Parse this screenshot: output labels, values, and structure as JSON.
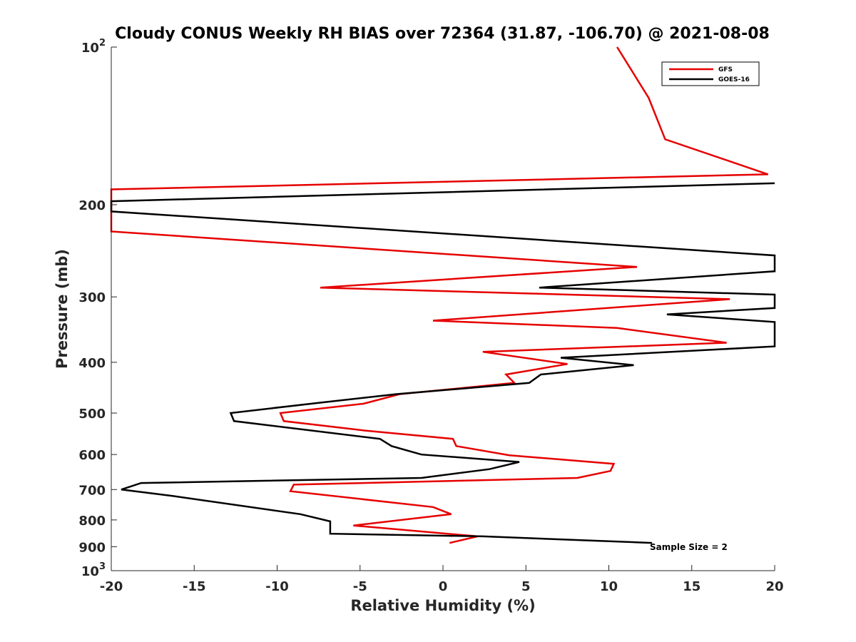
{
  "chart_data": {
    "type": "line",
    "title": "Cloudy CONUS Weekly RH BIAS over 72364 (31.87, -106.70) @ 2021-08-08",
    "xlabel": "Relative Humidity (%)",
    "ylabel": "Pressure (mb)",
    "xlim": [
      -20,
      20
    ],
    "ylim": [
      100,
      1000
    ],
    "y_scale": "log",
    "y_reversed": true,
    "x_ticks": [
      -20,
      -15,
      -10,
      -5,
      0,
      5,
      10,
      15,
      20
    ],
    "x_tick_labels": [
      "-20",
      "-15",
      "-10",
      "-5",
      "0",
      "5",
      "10",
      "15",
      "20"
    ],
    "y_ticks": [
      100,
      200,
      300,
      400,
      500,
      600,
      700,
      800,
      900,
      1000
    ],
    "y_tick_labels": [
      "10^2",
      "200",
      "300",
      "400",
      "500",
      "600",
      "700",
      "800",
      "900",
      "10^3"
    ],
    "grid": false,
    "legend_position": "top-right",
    "annotation": "Sample Size = 2",
    "series": [
      {
        "name": "GFS",
        "color": "#e60000",
        "points": [
          [
            10.5,
            100
          ],
          [
            12.4,
            125
          ],
          [
            13.4,
            150
          ],
          [
            19.6,
            175
          ],
          [
            -20,
            187
          ],
          [
            -20,
            225
          ],
          [
            11.7,
            263
          ],
          [
            -7.4,
            288
          ],
          [
            17.3,
            303
          ],
          [
            -0.6,
            333
          ],
          [
            10.5,
            344
          ],
          [
            17.1,
            367
          ],
          [
            2.4,
            382
          ],
          [
            7.5,
            403
          ],
          [
            3.8,
            422
          ],
          [
            4.3,
            438
          ],
          [
            -2.6,
            460
          ],
          [
            -4.8,
            480
          ],
          [
            -9.8,
            500
          ],
          [
            -9.6,
            518
          ],
          [
            -4.7,
            540
          ],
          [
            0.6,
            560
          ],
          [
            0.8,
            578
          ],
          [
            4.0,
            602
          ],
          [
            10.3,
            625
          ],
          [
            10.1,
            645
          ],
          [
            8.1,
            665
          ],
          [
            -9.0,
            685
          ],
          [
            -9.2,
            705
          ],
          [
            -0.6,
            756
          ],
          [
            0.5,
            780
          ],
          [
            -5.4,
            820
          ],
          [
            2.1,
            860
          ],
          [
            0.4,
            885
          ]
        ]
      },
      {
        "name": "GOES-16",
        "color": "#000000",
        "points": [
          [
            20,
            182
          ],
          [
            -20,
            197
          ],
          [
            -20,
            206
          ],
          [
            20,
            250
          ],
          [
            20,
            268
          ],
          [
            5.8,
            288
          ],
          [
            20,
            297
          ],
          [
            20,
            315
          ],
          [
            13.5,
            324
          ],
          [
            20,
            335
          ],
          [
            20,
            373
          ],
          [
            7.1,
            392
          ],
          [
            11.5,
            405
          ],
          [
            5.9,
            422
          ],
          [
            5.2,
            438
          ],
          [
            -2.8,
            460
          ],
          [
            -7.5,
            478
          ],
          [
            -12.8,
            500
          ],
          [
            -12.6,
            518
          ],
          [
            -3.8,
            560
          ],
          [
            -3.1,
            578
          ],
          [
            -1.3,
            600
          ],
          [
            4.6,
            620
          ],
          [
            2.8,
            640
          ],
          [
            -1.3,
            665
          ],
          [
            -18.2,
            680
          ],
          [
            -19.4,
            700
          ],
          [
            -16.3,
            720
          ],
          [
            -8.6,
            780
          ],
          [
            -6.8,
            805
          ],
          [
            -6.8,
            850
          ],
          [
            2.4,
            860
          ],
          [
            12.6,
            885
          ]
        ]
      }
    ]
  }
}
